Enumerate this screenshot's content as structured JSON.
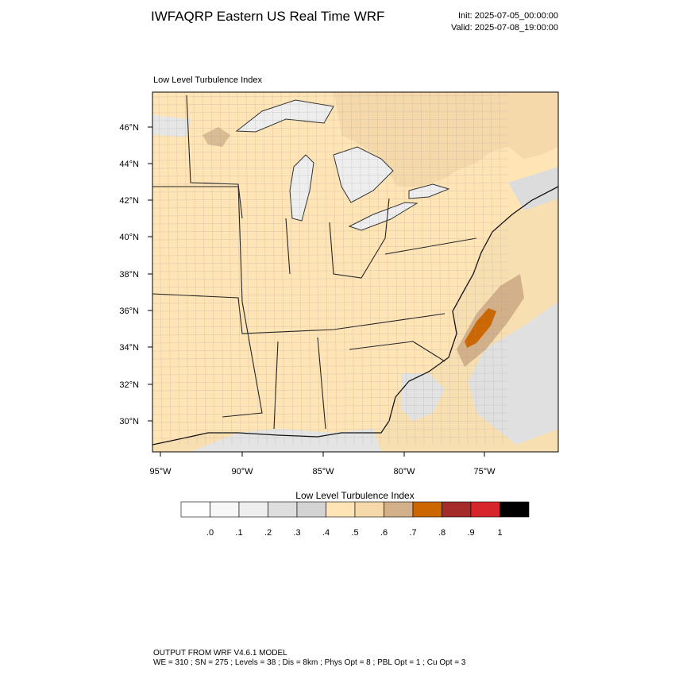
{
  "header": {
    "title": "IWFAQRP Eastern US Real Time WRF",
    "init": "Init: 2025-07-05_00:00:00",
    "valid": "Valid: 2025-07-08_19:00:00"
  },
  "map": {
    "panel_title": "Low Level Turbulence Index",
    "lat_labels": [
      "46°N",
      "44°N",
      "42°N",
      "40°N",
      "38°N",
      "36°N",
      "34°N",
      "32°N",
      "30°N"
    ],
    "lon_labels": [
      "95°W",
      "90°W",
      "85°W",
      "80°W",
      "75°W"
    ]
  },
  "colorbar": {
    "title": "Low Level Turbulence Index",
    "colors": [
      "#ffffff",
      "#f7f7f7",
      "#eeeeee",
      "#dedede",
      "#d3d3d3",
      "#ffe4b5",
      "#f5d9aa",
      "#d2b08a",
      "#cc6600",
      "#a52a2a",
      "#d7262b",
      "#000000"
    ],
    "labels": [
      ".0",
      ".1",
      ".2",
      ".3",
      ".4",
      ".5",
      ".6",
      ".7",
      ".8",
      ".9",
      "1"
    ]
  },
  "footer": {
    "line1": "OUTPUT FROM WRF V4.6.1 MODEL",
    "line2": "WE = 310 ; SN = 275 ; Levels = 38 ; Dis = 8km ; Phys Opt = 8 ; PBL Opt = 1 ; Cu Opt = 3"
  }
}
